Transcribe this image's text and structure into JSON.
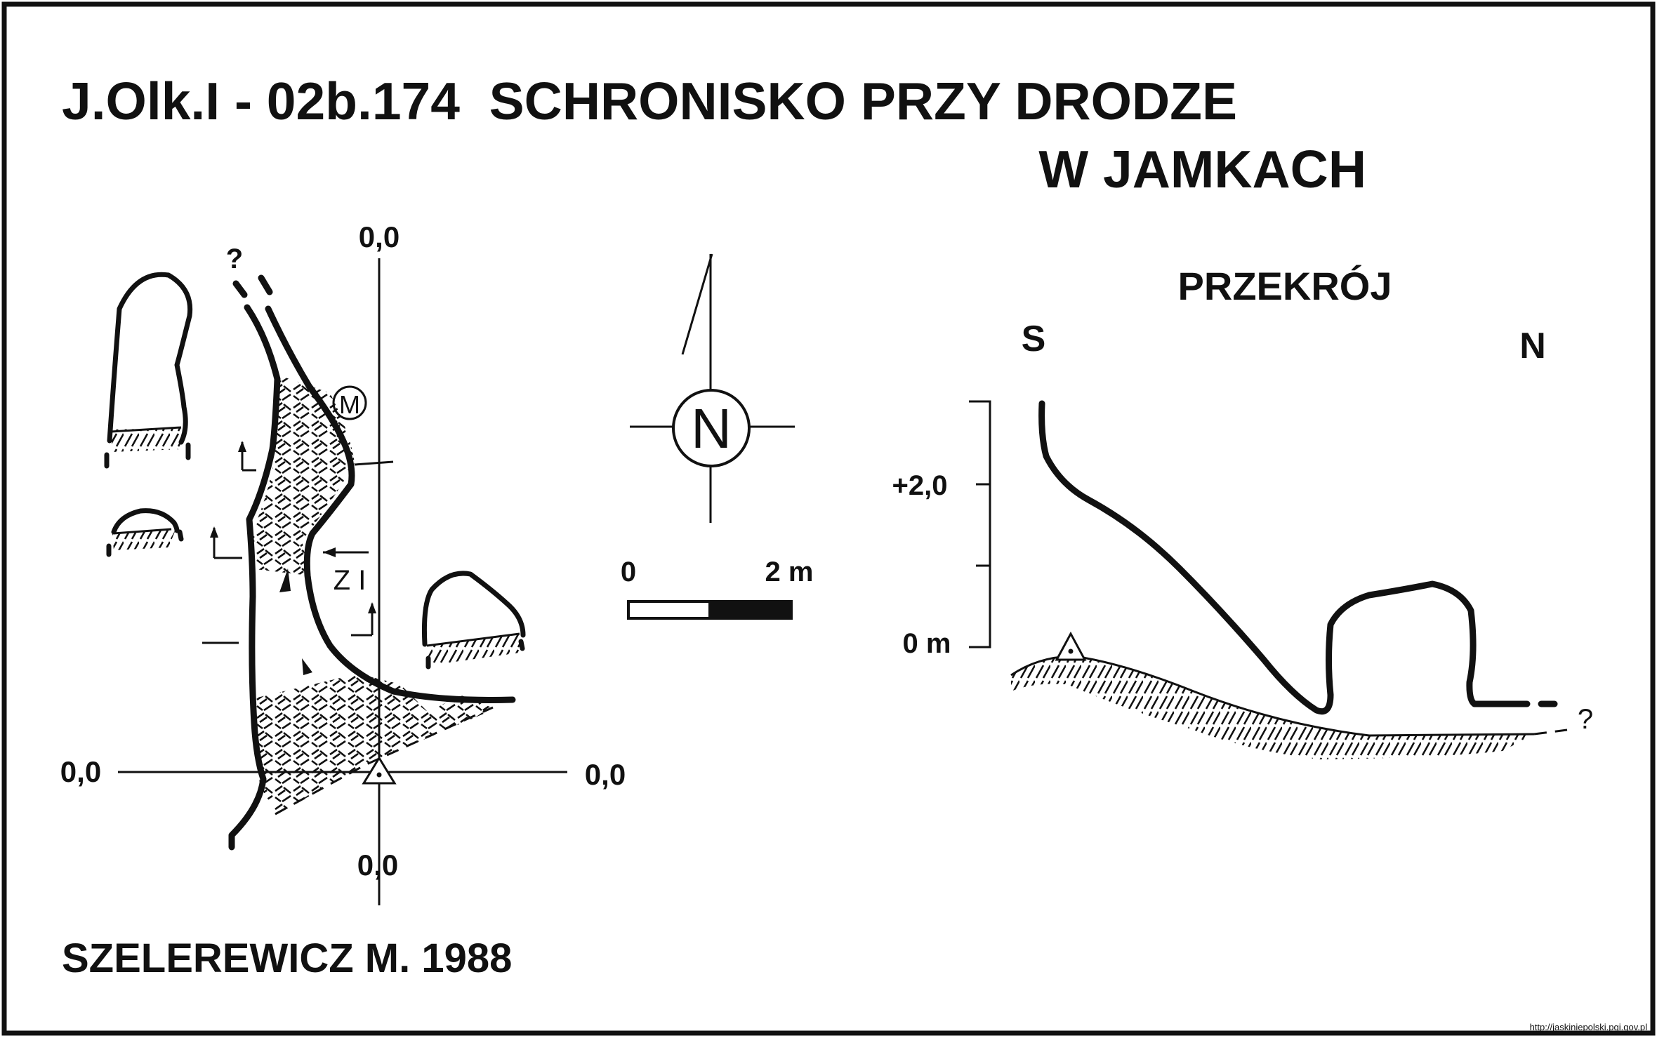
{
  "title": {
    "line1": "J.Olk.I - 02b.174  SCHRONISKO PRZY DRODZE",
    "line2": "W JAMKACH"
  },
  "plan": {
    "axis_labels": {
      "top": "0,0",
      "left": "0,0",
      "right": "0,0",
      "bottom": "0,0"
    },
    "marker_m": "M",
    "section_label": "Z I",
    "unknown_mark": "?"
  },
  "north_arrow": {
    "letter": "N"
  },
  "scale_bar": {
    "start_label": "0",
    "end_label": "2 m"
  },
  "section": {
    "title": "PRZEKRÓJ",
    "left_dir": "S",
    "right_dir": "N",
    "upper_label": "+2,0",
    "lower_label": "0 m",
    "unknown_mark": "?"
  },
  "author": "SZELEREWICZ M. 1988",
  "footer_url": "http://jaskiniepolski.pgi.gov.pl",
  "colors": {
    "ink": "#111111",
    "paper": "#ffffff"
  }
}
